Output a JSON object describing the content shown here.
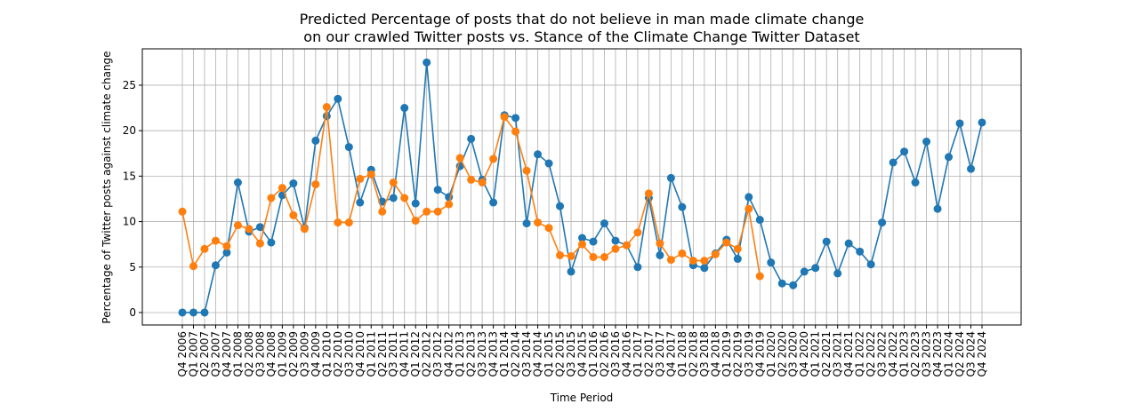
{
  "chart_data": {
    "type": "line",
    "title": [
      "Predicted Percentage of posts that do not believe in man made climate change",
      "on our crawled Twitter posts vs. Stance of the Climate Change Twitter Dataset"
    ],
    "xlabel": "Time Period",
    "ylabel": "Percentage of Twitter posts against climate change",
    "categories": [
      "Q4 2006",
      "Q1 2007",
      "Q2 2007",
      "Q3 2007",
      "Q4 2007",
      "Q1 2008",
      "Q2 2008",
      "Q3 2008",
      "Q4 2008",
      "Q1 2009",
      "Q2 2009",
      "Q3 2009",
      "Q4 2009",
      "Q1 2010",
      "Q2 2010",
      "Q3 2010",
      "Q4 2010",
      "Q1 2011",
      "Q2 2011",
      "Q3 2011",
      "Q4 2011",
      "Q1 2012",
      "Q2 2012",
      "Q3 2012",
      "Q4 2012",
      "Q1 2013",
      "Q2 2013",
      "Q3 2013",
      "Q4 2013",
      "Q1 2014",
      "Q2 2014",
      "Q3 2014",
      "Q4 2014",
      "Q1 2015",
      "Q2 2015",
      "Q3 2015",
      "Q4 2015",
      "Q1 2016",
      "Q2 2016",
      "Q3 2016",
      "Q4 2016",
      "Q1 2017",
      "Q2 2017",
      "Q3 2017",
      "Q4 2017",
      "Q1 2018",
      "Q2 2018",
      "Q3 2018",
      "Q4 2018",
      "Q1 2019",
      "Q2 2019",
      "Q3 2019",
      "Q4 2019",
      "Q1 2020",
      "Q2 2020",
      "Q3 2020",
      "Q4 2020",
      "Q1 2021",
      "Q2 2021",
      "Q3 2021",
      "Q4 2021",
      "Q1 2022",
      "Q2 2022",
      "Q3 2022",
      "Q4 2022",
      "Q1 2023",
      "Q2 2023",
      "Q3 2023",
      "Q4 2023",
      "Q1 2024",
      "Q2 2024",
      "Q3 2024",
      "Q4 2024"
    ],
    "series": [
      {
        "color": "#1f77b4",
        "values": [
          0,
          0,
          0,
          5.2,
          6.6,
          14.3,
          8.9,
          9.4,
          7.7,
          12.9,
          14.2,
          9.3,
          18.9,
          21.6,
          23.5,
          18.2,
          12.1,
          15.7,
          12.2,
          12.6,
          22.5,
          12.0,
          27.5,
          13.5,
          12.7,
          16.1,
          19.1,
          14.6,
          12.1,
          21.7,
          21.4,
          9.8,
          17.4,
          16.4,
          11.7,
          4.5,
          8.2,
          7.8,
          9.8,
          7.9,
          7.4,
          5.0,
          12.6,
          6.3,
          14.8,
          11.6,
          5.2,
          4.9,
          6.5,
          8.0,
          5.9,
          12.7,
          10.2,
          5.5,
          3.2,
          3.0,
          4.5,
          4.9,
          7.8,
          4.3,
          7.6,
          6.7,
          5.3,
          9.9,
          16.5,
          17.7,
          14.3,
          18.8,
          11.4,
          17.1,
          20.8,
          15.8,
          20.9
        ]
      },
      {
        "color": "#ff7f0e",
        "values": [
          11.1,
          5.1,
          7.0,
          7.9,
          7.3,
          9.6,
          9.2,
          7.6,
          12.6,
          13.7,
          10.7,
          9.2,
          14.1,
          22.6,
          9.9,
          9.9,
          14.7,
          15.2,
          11.1,
          14.3,
          12.6,
          10.1,
          11.1,
          11.1,
          11.9,
          17.0,
          14.6,
          14.3,
          16.9,
          21.5,
          19.9,
          15.6,
          9.9,
          9.3,
          6.3,
          6.2,
          7.5,
          6.1,
          6.1,
          7.0,
          7.4,
          8.8,
          13.1,
          7.6,
          5.8,
          6.5,
          5.7,
          5.7,
          6.4,
          7.7,
          7.0,
          11.4,
          4.0,
          null,
          null,
          null,
          null,
          null,
          null,
          null,
          null,
          null,
          null,
          null,
          null,
          null,
          null,
          null,
          null,
          null,
          null,
          null,
          null
        ]
      }
    ],
    "ylim": [
      -1.37,
      29.0
    ],
    "yticks": [
      0,
      5,
      10,
      15,
      20,
      25
    ],
    "grid": true
  }
}
